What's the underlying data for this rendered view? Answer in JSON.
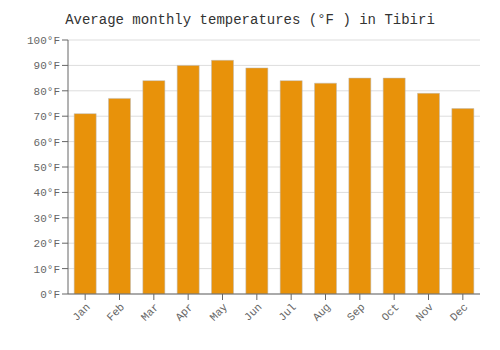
{
  "chart_data": {
    "type": "bar",
    "title": "Average monthly temperatures (°F ) in Tibiri",
    "categories": [
      "Jan",
      "Feb",
      "Mar",
      "Apr",
      "May",
      "Jun",
      "Jul",
      "Aug",
      "Sep",
      "Oct",
      "Nov",
      "Dec"
    ],
    "values": [
      71,
      77,
      84,
      90,
      92,
      89,
      84,
      83,
      85,
      85,
      79,
      73
    ],
    "color": "#E8920A",
    "ylim": [
      0,
      100
    ],
    "yticks": [
      {
        "value": 0,
        "label": "0°F"
      },
      {
        "value": 10,
        "label": "10°F"
      },
      {
        "value": 20,
        "label": "20°F"
      },
      {
        "value": 30,
        "label": "30°F"
      },
      {
        "value": 40,
        "label": "40°F"
      },
      {
        "value": 50,
        "label": "50°F"
      },
      {
        "value": 60,
        "label": "60°F"
      },
      {
        "value": 70,
        "label": "70°F"
      },
      {
        "value": 80,
        "label": "80°F"
      },
      {
        "value": 90,
        "label": "90°F"
      },
      {
        "value": 100,
        "label": "100°F"
      }
    ],
    "grid": true
  }
}
